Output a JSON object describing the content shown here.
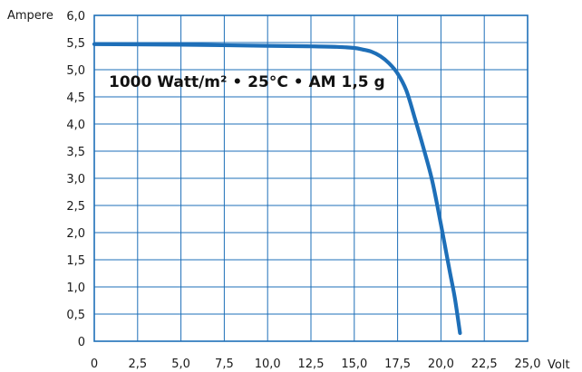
{
  "chart_data": {
    "type": "line",
    "title": "",
    "xlabel": "Volt",
    "ylabel": "Ampere",
    "xlim": [
      0,
      25
    ],
    "ylim": [
      0,
      6
    ],
    "xticks": [
      0,
      2.5,
      5,
      7.5,
      10,
      12.5,
      15,
      17.5,
      20,
      22.5,
      25
    ],
    "yticks": [
      0,
      0.5,
      1,
      1.5,
      2,
      2.5,
      3,
      3.5,
      4,
      4.5,
      5,
      5.5,
      6
    ],
    "xtick_labels": [
      "0",
      "2,5",
      "5,0",
      "7,5",
      "10,0",
      "12,5",
      "15,0",
      "17,5",
      "20,0",
      "22,5",
      "25,0"
    ],
    "ytick_labels": [
      "0",
      "0,5",
      "1,0",
      "1,5",
      "2,0",
      "2,5",
      "3,0",
      "3,5",
      "4,0",
      "4,5",
      "5,0",
      "5,5",
      "6,0"
    ],
    "grid": true,
    "annotation": "1000 Watt/m² • 25°C • AM 1,5 g",
    "series": [
      {
        "color": "#1e6fb8",
        "x": [
          0,
          5,
          10,
          12.5,
          14,
          15,
          15.5,
          16,
          16.5,
          17,
          17.5,
          18,
          18.5,
          19,
          19.5,
          20,
          20.5,
          20.8,
          21.1
        ],
        "y": [
          5.47,
          5.46,
          5.44,
          5.43,
          5.42,
          5.4,
          5.37,
          5.33,
          5.25,
          5.12,
          4.93,
          4.62,
          4.1,
          3.55,
          2.95,
          2.15,
          1.3,
          0.8,
          0.15
        ]
      }
    ]
  },
  "colors": {
    "frame": "#1e6fb8",
    "grid": "#1e6fb8",
    "curve": "#1e6fb8"
  }
}
